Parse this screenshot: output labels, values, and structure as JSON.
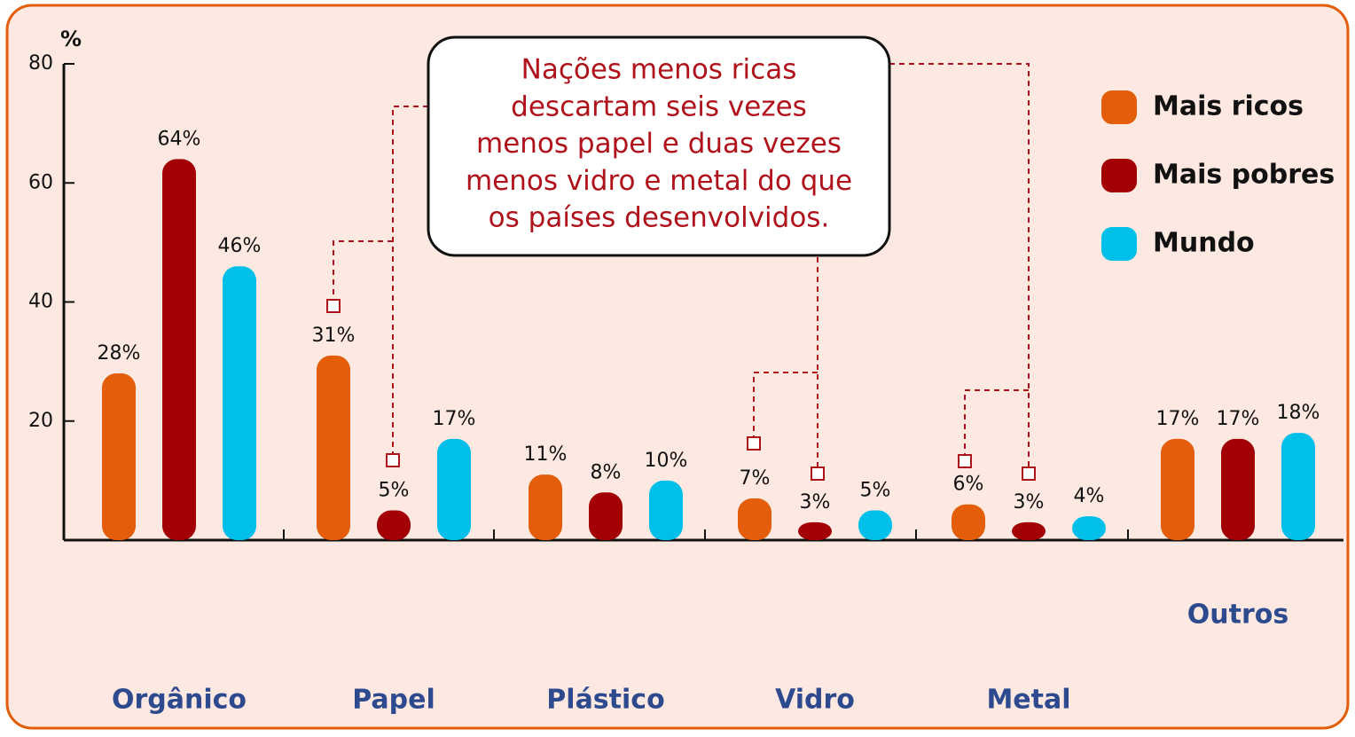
{
  "chart_data": {
    "type": "bar",
    "ylabel": "%",
    "categories": [
      "Orgânico",
      "Papel",
      "Plástico",
      "Vidro",
      "Metal",
      "Outros"
    ],
    "series": [
      {
        "name": "Mais ricos",
        "color": "#e35d0a",
        "values": [
          28,
          31,
          11,
          7,
          6,
          17
        ],
        "value_labels": [
          "28%",
          "31%",
          "11%",
          "7%",
          "6%",
          "17%"
        ]
      },
      {
        "name": "Mais pobres",
        "color": "#a30005",
        "values": [
          64,
          5,
          8,
          3,
          3,
          17
        ],
        "value_labels": [
          "64%",
          "5%",
          "8%",
          "3%",
          "3%",
          "17%"
        ]
      },
      {
        "name": "Mundo",
        "color": "#00bfe8",
        "values": [
          46,
          17,
          10,
          5,
          4,
          18
        ],
        "value_labels": [
          "46%",
          "17%",
          "10%",
          "5%",
          "4%",
          "18%"
        ]
      }
    ],
    "ylim": [
      0,
      80
    ],
    "yticks": [
      20,
      40,
      60,
      80
    ],
    "annotation": [
      "Nações menos ricas",
      "descartam seis vezes",
      "menos papel e duas vezes",
      "menos vidro e metal do que",
      "os países desenvolvidos."
    ],
    "legend": "upper right"
  }
}
